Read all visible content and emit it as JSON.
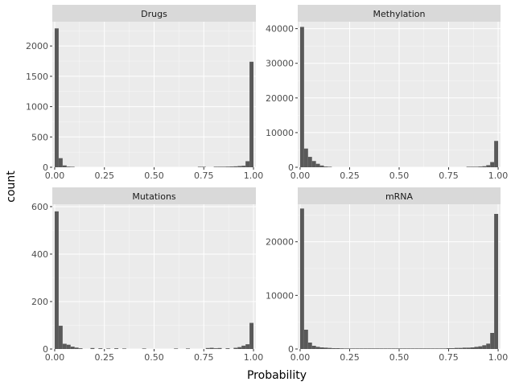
{
  "chart_data": {
    "type": "bar",
    "subtype": "faceted-histogram",
    "xlabel": "Probability",
    "ylabel": "count",
    "xlim": [
      0,
      1
    ],
    "x_ticks": [
      0,
      0.25,
      0.5,
      0.75,
      1
    ],
    "x_tick_labels": [
      "0.00",
      "0.25",
      "0.50",
      "0.75",
      "1.00"
    ],
    "bin_width": 0.02,
    "grid": true,
    "colors": {
      "bar": "#595959",
      "panel": "#ebebeb",
      "strip": "#d9d9d9",
      "grid": "#ffffff"
    },
    "facets": [
      {
        "name": "Drugs",
        "ylim": [
          0,
          2400
        ],
        "y_ticks": [
          0,
          500,
          1000,
          1500,
          2000
        ],
        "y_tick_labels": [
          "0",
          "500",
          "1000",
          "1500",
          "2000"
        ],
        "bins": [
          {
            "x": 0.0,
            "count": 2290
          },
          {
            "x": 0.02,
            "count": 150
          },
          {
            "x": 0.04,
            "count": 30
          },
          {
            "x": 0.06,
            "count": 10
          },
          {
            "x": 0.08,
            "count": 4
          },
          {
            "x": 0.72,
            "count": 3
          },
          {
            "x": 0.74,
            "count": 4
          },
          {
            "x": 0.8,
            "count": 6
          },
          {
            "x": 0.82,
            "count": 8
          },
          {
            "x": 0.84,
            "count": 8
          },
          {
            "x": 0.86,
            "count": 10
          },
          {
            "x": 0.88,
            "count": 12
          },
          {
            "x": 0.9,
            "count": 15
          },
          {
            "x": 0.92,
            "count": 20
          },
          {
            "x": 0.94,
            "count": 25
          },
          {
            "x": 0.96,
            "count": 100
          },
          {
            "x": 0.98,
            "count": 1740
          }
        ]
      },
      {
        "name": "Methylation",
        "ylim": [
          0,
          42000
        ],
        "y_ticks": [
          0,
          10000,
          20000,
          30000,
          40000
        ],
        "y_tick_labels": [
          "0",
          "10000",
          "20000",
          "30000",
          "40000"
        ],
        "bins": [
          {
            "x": 0.0,
            "count": 40500
          },
          {
            "x": 0.02,
            "count": 5400
          },
          {
            "x": 0.04,
            "count": 3000
          },
          {
            "x": 0.06,
            "count": 1800
          },
          {
            "x": 0.08,
            "count": 1000
          },
          {
            "x": 0.1,
            "count": 500
          },
          {
            "x": 0.12,
            "count": 200
          },
          {
            "x": 0.14,
            "count": 80
          },
          {
            "x": 0.84,
            "count": 50
          },
          {
            "x": 0.86,
            "count": 80
          },
          {
            "x": 0.88,
            "count": 120
          },
          {
            "x": 0.9,
            "count": 200
          },
          {
            "x": 0.92,
            "count": 300
          },
          {
            "x": 0.94,
            "count": 600
          },
          {
            "x": 0.96,
            "count": 1500
          },
          {
            "x": 0.98,
            "count": 7600
          }
        ]
      },
      {
        "name": "Mutations",
        "ylim": [
          0,
          610
        ],
        "y_ticks": [
          0,
          200,
          400,
          600
        ],
        "y_tick_labels": [
          "0",
          "200",
          "400",
          "600"
        ],
        "bins": [
          {
            "x": 0.0,
            "count": 580
          },
          {
            "x": 0.02,
            "count": 98
          },
          {
            "x": 0.04,
            "count": 22
          },
          {
            "x": 0.06,
            "count": 18
          },
          {
            "x": 0.08,
            "count": 10
          },
          {
            "x": 0.1,
            "count": 6
          },
          {
            "x": 0.12,
            "count": 3
          },
          {
            "x": 0.18,
            "count": 4
          },
          {
            "x": 0.22,
            "count": 3
          },
          {
            "x": 0.26,
            "count": 2
          },
          {
            "x": 0.3,
            "count": 3
          },
          {
            "x": 0.34,
            "count": 2
          },
          {
            "x": 0.44,
            "count": 2
          },
          {
            "x": 0.6,
            "count": 2
          },
          {
            "x": 0.66,
            "count": 2
          },
          {
            "x": 0.76,
            "count": 4
          },
          {
            "x": 0.78,
            "count": 5
          },
          {
            "x": 0.8,
            "count": 3
          },
          {
            "x": 0.82,
            "count": 4
          },
          {
            "x": 0.86,
            "count": 3
          },
          {
            "x": 0.9,
            "count": 5
          },
          {
            "x": 0.92,
            "count": 8
          },
          {
            "x": 0.94,
            "count": 14
          },
          {
            "x": 0.96,
            "count": 20
          },
          {
            "x": 0.98,
            "count": 110
          }
        ]
      },
      {
        "name": "mRNA",
        "ylim": [
          0,
          27000
        ],
        "y_ticks": [
          0,
          10000,
          20000
        ],
        "y_tick_labels": [
          "0",
          "10000",
          "20000"
        ],
        "bins": [
          {
            "x": 0.0,
            "count": 26200
          },
          {
            "x": 0.02,
            "count": 3600
          },
          {
            "x": 0.04,
            "count": 1200
          },
          {
            "x": 0.06,
            "count": 600
          },
          {
            "x": 0.08,
            "count": 400
          },
          {
            "x": 0.1,
            "count": 300
          },
          {
            "x": 0.12,
            "count": 250
          },
          {
            "x": 0.14,
            "count": 200
          },
          {
            "x": 0.16,
            "count": 150
          },
          {
            "x": 0.18,
            "count": 150
          },
          {
            "x": 0.2,
            "count": 120
          },
          {
            "x": 0.22,
            "count": 100
          },
          {
            "x": 0.24,
            "count": 100
          },
          {
            "x": 0.26,
            "count": 100
          },
          {
            "x": 0.28,
            "count": 100
          },
          {
            "x": 0.3,
            "count": 100
          },
          {
            "x": 0.32,
            "count": 100
          },
          {
            "x": 0.34,
            "count": 100
          },
          {
            "x": 0.36,
            "count": 100
          },
          {
            "x": 0.38,
            "count": 100
          },
          {
            "x": 0.4,
            "count": 100
          },
          {
            "x": 0.42,
            "count": 100
          },
          {
            "x": 0.44,
            "count": 100
          },
          {
            "x": 0.46,
            "count": 100
          },
          {
            "x": 0.48,
            "count": 100
          },
          {
            "x": 0.5,
            "count": 100
          },
          {
            "x": 0.52,
            "count": 100
          },
          {
            "x": 0.54,
            "count": 100
          },
          {
            "x": 0.56,
            "count": 100
          },
          {
            "x": 0.58,
            "count": 100
          },
          {
            "x": 0.6,
            "count": 100
          },
          {
            "x": 0.62,
            "count": 100
          },
          {
            "x": 0.64,
            "count": 100
          },
          {
            "x": 0.66,
            "count": 100
          },
          {
            "x": 0.68,
            "count": 100
          },
          {
            "x": 0.7,
            "count": 100
          },
          {
            "x": 0.72,
            "count": 100
          },
          {
            "x": 0.74,
            "count": 150
          },
          {
            "x": 0.76,
            "count": 150
          },
          {
            "x": 0.78,
            "count": 200
          },
          {
            "x": 0.8,
            "count": 200
          },
          {
            "x": 0.82,
            "count": 250
          },
          {
            "x": 0.84,
            "count": 250
          },
          {
            "x": 0.86,
            "count": 300
          },
          {
            "x": 0.88,
            "count": 400
          },
          {
            "x": 0.9,
            "count": 500
          },
          {
            "x": 0.92,
            "count": 700
          },
          {
            "x": 0.94,
            "count": 1000
          },
          {
            "x": 0.96,
            "count": 3000
          },
          {
            "x": 0.98,
            "count": 25200
          }
        ]
      }
    ]
  }
}
